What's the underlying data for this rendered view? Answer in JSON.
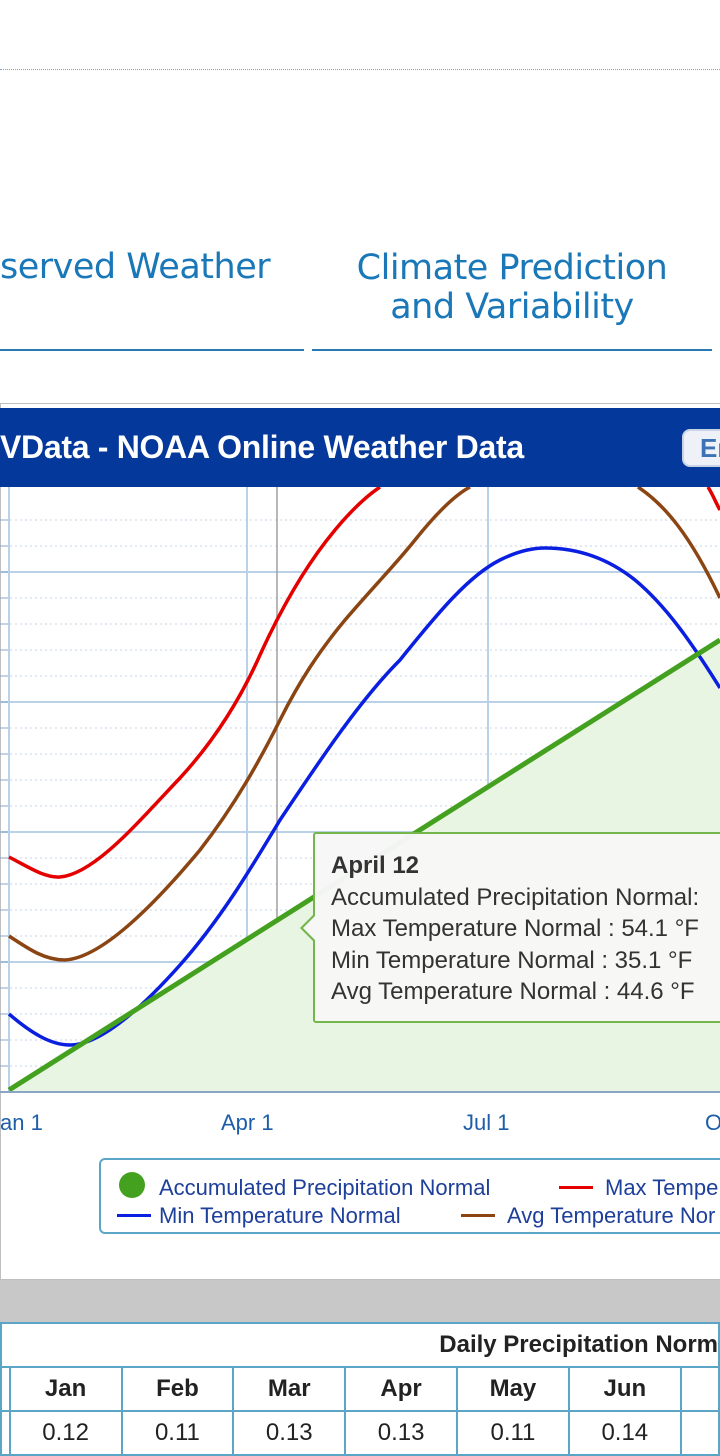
{
  "nav": {
    "observed_weather": "served Weather",
    "climate_prediction_line1": "Climate Prediction",
    "climate_prediction_line2": "and Variability"
  },
  "panel": {
    "title": "VData - NOAA Online Weather Data",
    "lang_button": "En"
  },
  "tooltip": {
    "date": "April 12",
    "precip": "Accumulated Precipitation Normal:",
    "max": "Max Temperature Normal : 54.1 °F",
    "min": "Min Temperature Normal : 35.1 °F",
    "avg": "Avg Temperature Normal : 44.6 °F"
  },
  "legend": {
    "precip": "Accumulated Precipitation Normal",
    "max": "Max Tempe",
    "min": "Min Temperature Normal",
    "avg": "Avg Temperature Nor"
  },
  "table": {
    "caption": "Daily Precipitation Norm",
    "headers": [
      "Jan",
      "Feb",
      "Mar",
      "Apr",
      "May",
      "Jun"
    ],
    "values": [
      "0.12",
      "0.11",
      "0.13",
      "0.13",
      "0.11",
      "0.14"
    ]
  },
  "chart_data": {
    "type": "line",
    "x_ticks": [
      "an 1",
      "Apr 1",
      "Jul 1",
      "O"
    ],
    "series": [
      {
        "name": "Accumulated Precipitation Normal",
        "color": "#44a11f",
        "style": "area"
      },
      {
        "name": "Max Tempe",
        "color": "#e50000"
      },
      {
        "name": "Min Temperature Normal",
        "color": "#0a1fe0"
      },
      {
        "name": "Avg Temperature Nor",
        "color": "#8b4513"
      }
    ],
    "grid": true,
    "legend_position": "bottom"
  }
}
